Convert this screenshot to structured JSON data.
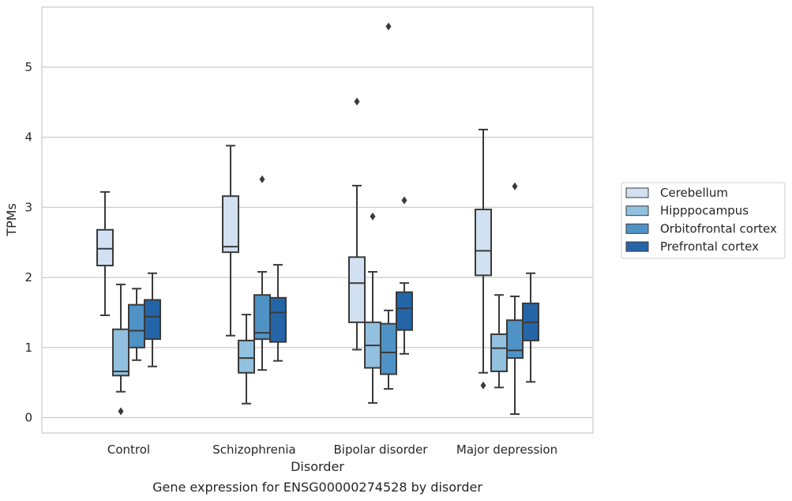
{
  "chart_data": {
    "type": "box",
    "xlabel": "Disorder",
    "ylabel": "TPMs",
    "caption": "Gene expression for ENSG00000274528 by disorder",
    "ylim": [
      -0.2,
      5.8
    ],
    "yticks": [
      0,
      1,
      2,
      3,
      4,
      5
    ],
    "grid": "horizontal",
    "legend_position": "right",
    "categories": [
      "Control",
      "Schizophrenia",
      "Bipolar disorder",
      "Major depression"
    ],
    "series": [
      {
        "name": "Cerebellum",
        "color": "#d1e1f1",
        "boxes": [
          {
            "whisker_low": 1.46,
            "q1": 2.17,
            "median": 2.41,
            "q3": 2.68,
            "whisker_high": 3.22,
            "outliers": []
          },
          {
            "whisker_low": 1.17,
            "q1": 2.36,
            "median": 2.44,
            "q3": 3.16,
            "whisker_high": 3.88,
            "outliers": []
          },
          {
            "whisker_low": 0.97,
            "q1": 1.36,
            "median": 1.92,
            "q3": 2.29,
            "whisker_high": 3.31,
            "outliers": [
              4.51
            ]
          },
          {
            "whisker_low": 0.64,
            "q1": 2.03,
            "median": 2.38,
            "q3": 2.97,
            "whisker_high": 4.11,
            "outliers": [
              0.46
            ]
          }
        ]
      },
      {
        "name": "Hipppocampus",
        "color": "#92c0df",
        "boxes": [
          {
            "whisker_low": 0.37,
            "q1": 0.6,
            "median": 0.66,
            "q3": 1.26,
            "whisker_high": 1.9,
            "outliers": [
              0.09
            ]
          },
          {
            "whisker_low": 0.2,
            "q1": 0.64,
            "median": 0.85,
            "q3": 1.1,
            "whisker_high": 1.47,
            "outliers": []
          },
          {
            "whisker_low": 0.21,
            "q1": 0.71,
            "median": 1.03,
            "q3": 1.36,
            "whisker_high": 2.08,
            "outliers": [
              2.87
            ]
          },
          {
            "whisker_low": 0.43,
            "q1": 0.66,
            "median": 0.99,
            "q3": 1.19,
            "whisker_high": 1.75,
            "outliers": []
          }
        ]
      },
      {
        "name": "Orbitofrontal cortex",
        "color": "#4f93c6",
        "boxes": [
          {
            "whisker_low": 0.82,
            "q1": 1.0,
            "median": 1.24,
            "q3": 1.61,
            "whisker_high": 1.84,
            "outliers": []
          },
          {
            "whisker_low": 0.68,
            "q1": 1.12,
            "median": 1.21,
            "q3": 1.75,
            "whisker_high": 2.08,
            "outliers": [
              3.4
            ]
          },
          {
            "whisker_low": 0.41,
            "q1": 0.62,
            "median": 0.93,
            "q3": 1.34,
            "whisker_high": 1.53,
            "outliers": [
              5.58
            ]
          },
          {
            "whisker_low": 0.05,
            "q1": 0.85,
            "median": 0.96,
            "q3": 1.39,
            "whisker_high": 1.73,
            "outliers": [
              3.3
            ]
          }
        ]
      },
      {
        "name": "Prefrontal cortex",
        "color": "#2465a8",
        "boxes": [
          {
            "whisker_low": 0.73,
            "q1": 1.12,
            "median": 1.44,
            "q3": 1.68,
            "whisker_high": 2.06,
            "outliers": []
          },
          {
            "whisker_low": 0.81,
            "q1": 1.08,
            "median": 1.5,
            "q3": 1.71,
            "whisker_high": 2.18,
            "outliers": []
          },
          {
            "whisker_low": 0.91,
            "q1": 1.25,
            "median": 1.56,
            "q3": 1.79,
            "whisker_high": 1.92,
            "outliers": [
              3.1
            ]
          },
          {
            "whisker_low": 0.51,
            "q1": 1.1,
            "median": 1.36,
            "q3": 1.63,
            "whisker_high": 2.06,
            "outliers": []
          }
        ]
      }
    ]
  }
}
